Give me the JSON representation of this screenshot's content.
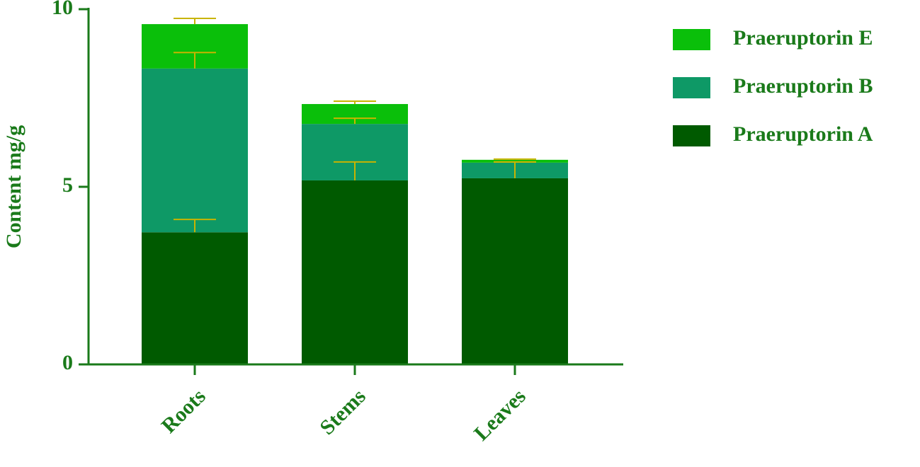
{
  "chart_data": {
    "type": "stacked_bar",
    "y_label": "Content mg/g",
    "categories": [
      "Roots",
      "Stems",
      "Leaves"
    ],
    "series": [
      {
        "name": "Praeruptorin A",
        "color": "#005a00",
        "values": [
          3.72,
          5.18,
          5.24
        ],
        "errors": [
          0.36,
          0.52,
          0.46
        ]
      },
      {
        "name": "Praeruptorin B",
        "color": "#0e9966",
        "values": [
          4.61,
          1.59,
          0.44
        ],
        "errors": [
          0.45,
          0.16,
          0.02
        ]
      },
      {
        "name": "Praeruptorin E",
        "color": "#0abf0a",
        "values": [
          1.25,
          0.56,
          0.08
        ],
        "errors": [
          0.16,
          0.08,
          0.02
        ]
      }
    ],
    "error_color": "#c8b400",
    "ylim": [
      0,
      10
    ],
    "yticks": [
      0,
      5,
      10
    ],
    "legend": "right"
  }
}
